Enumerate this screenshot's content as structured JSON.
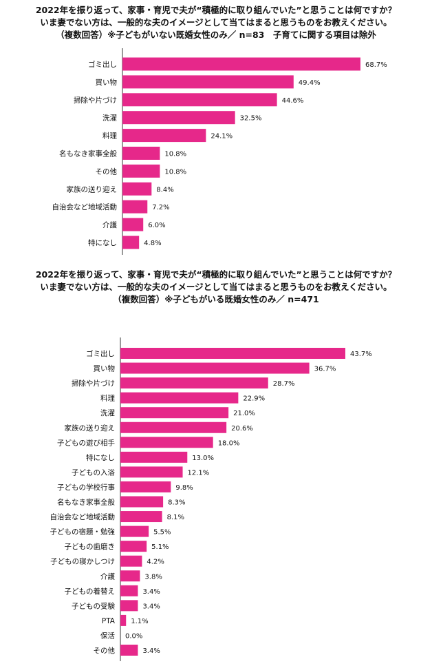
{
  "chart_data": [
    {
      "type": "bar",
      "orientation": "horizontal",
      "title_lines": [
        "2022年を振り返って、家事・育児で夫が“積極的に取り組んでいた”と思うことは何ですか？",
        "いま妻でない方は、一般的な夫のイメージとして当てはまると思うものをお教えください。",
        "（複数回答）※子どもがいない既婚女性のみ／ n=83　子育てに関する項目は除外"
      ],
      "categories": [
        "ゴミ出し",
        "買い物",
        "掃除や片づけ",
        "洗濯",
        "料理",
        "名もなき家事全般",
        "その他",
        "家族の送り迎え",
        "自治会など地域活動",
        "介護",
        "特になし"
      ],
      "values": [
        68.7,
        49.4,
        44.6,
        32.5,
        24.1,
        10.8,
        10.8,
        8.4,
        7.2,
        6.0,
        4.8
      ],
      "value_labels": [
        "68.7%",
        "49.4%",
        "44.6%",
        "32.5%",
        "24.1%",
        "10.8%",
        "10.8%",
        "8.4%",
        "7.2%",
        "6.0%",
        "4.8%"
      ],
      "unit": "%",
      "xlim": [
        0,
        68.7
      ],
      "bar_color": "#e6288a"
    },
    {
      "type": "bar",
      "orientation": "horizontal",
      "title_lines": [
        "2022年を振り返って、家事・育児で夫が“積極的に取り組んでいた”と思うことは何ですか？",
        "いま妻でない方は、一般的な夫のイメージとして当てはまると思うものをお教えください。",
        "（複数回答）※子どもがいる既婚女性のみ／ n=471"
      ],
      "categories": [
        "ゴミ出し",
        "買い物",
        "掃除や片づけ",
        "料理",
        "洗濯",
        "家族の送り迎え",
        "子どもの遊び相手",
        "特になし",
        "子どもの入浴",
        "子どもの学校行事",
        "名もなき家事全般",
        "自治会など地域活動",
        "子どもの宿題・勉強",
        "子どもの歯磨き",
        "子どもの寝かしつけ",
        "介護",
        "子どもの着替え",
        "子どもの受験",
        "PTA",
        "保活",
        "その他"
      ],
      "values": [
        43.7,
        36.7,
        28.7,
        22.9,
        21.0,
        20.6,
        18.0,
        13.0,
        12.1,
        9.8,
        8.3,
        8.1,
        5.5,
        5.1,
        4.2,
        3.8,
        3.4,
        3.4,
        1.1,
        0.0,
        3.4
      ],
      "value_labels": [
        "43.7%",
        "36.7%",
        "28.7%",
        "22.9%",
        "21.0%",
        "20.6%",
        "18.0%",
        "13.0%",
        "12.1%",
        "9.8%",
        "8.3%",
        "8.1%",
        "5.5%",
        "5.1%",
        "4.2%",
        "3.8%",
        "3.4%",
        "3.4%",
        "1.1%",
        "0.0%",
        "3.4%"
      ],
      "unit": "%",
      "xlim": [
        0,
        43.7
      ],
      "bar_color": "#e6288a"
    }
  ]
}
